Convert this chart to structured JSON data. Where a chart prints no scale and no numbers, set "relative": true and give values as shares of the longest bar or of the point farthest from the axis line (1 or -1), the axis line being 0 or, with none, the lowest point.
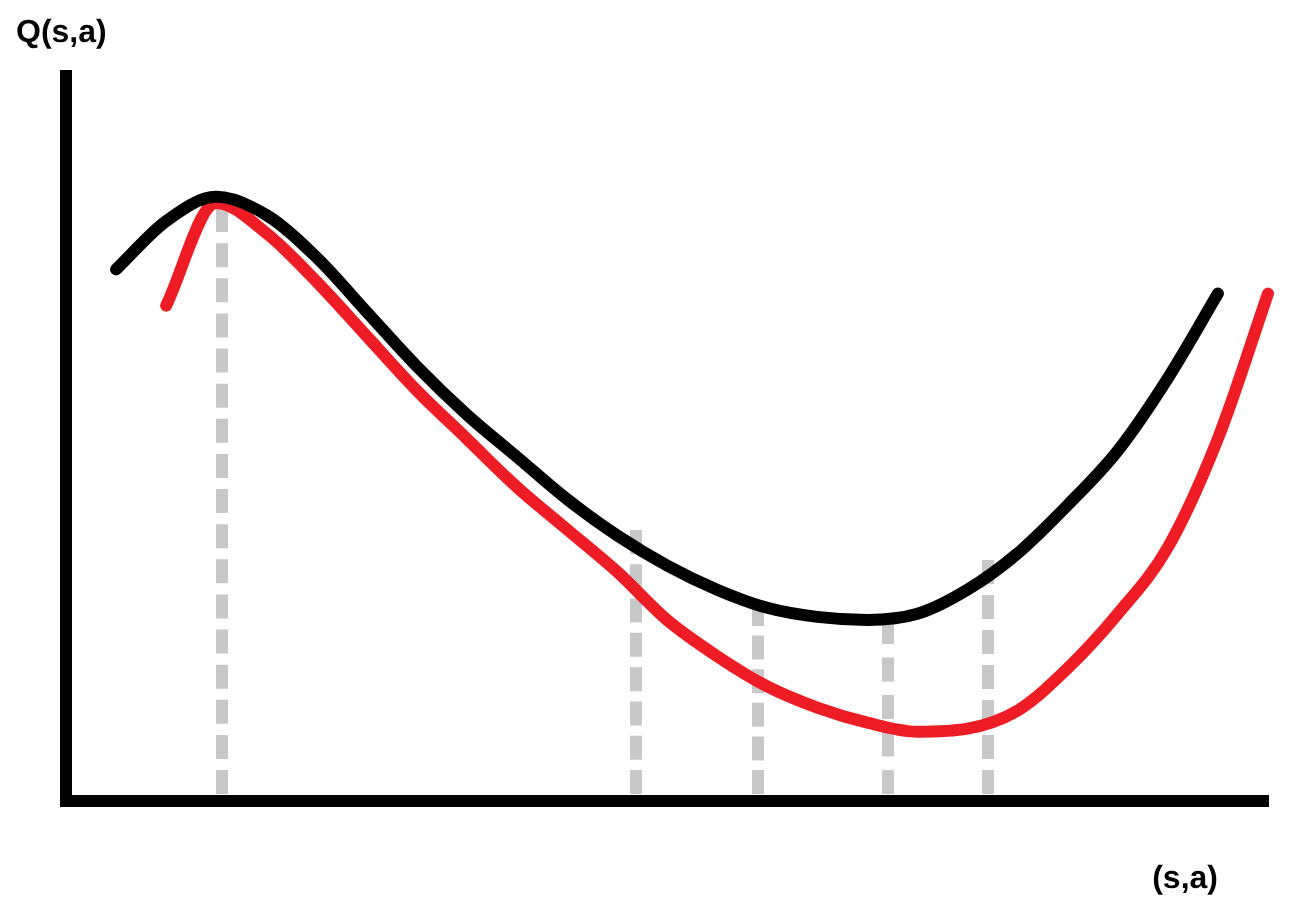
{
  "chart_data": {
    "type": "line",
    "relative": true,
    "ylabel": "Q(s,a)",
    "xlabel": "(s,a)",
    "grid": false,
    "legend": false,
    "marker": "none",
    "line_style": "solid",
    "categories": [
      null,
      null,
      null,
      null,
      null,
      null,
      null,
      null,
      null,
      null,
      null,
      null,
      null,
      null,
      null,
      null,
      null,
      null,
      null,
      null,
      null,
      null,
      null,
      null,
      null
    ],
    "series": [
      {
        "color": "#000000",
        "values": [
          null,
          0.88,
          0.96,
          1.0,
          0.97,
          0.9,
          0.81,
          0.72,
          0.64,
          0.57,
          0.5,
          0.44,
          0.39,
          0.35,
          0.32,
          0.305,
          0.3,
          0.31,
          0.35,
          0.41,
          0.49,
          0.58,
          0.7,
          0.84,
          null
        ]
      },
      {
        "color": "#ee1c24",
        "values": [
          null,
          null,
          0.82,
          0.99,
          0.94,
          0.86,
          0.77,
          0.68,
          0.6,
          0.52,
          0.45,
          0.38,
          0.3,
          0.24,
          0.19,
          0.155,
          0.13,
          0.115,
          0.12,
          0.15,
          0.22,
          0.31,
          0.42,
          0.6,
          0.84
        ]
      }
    ]
  }
}
